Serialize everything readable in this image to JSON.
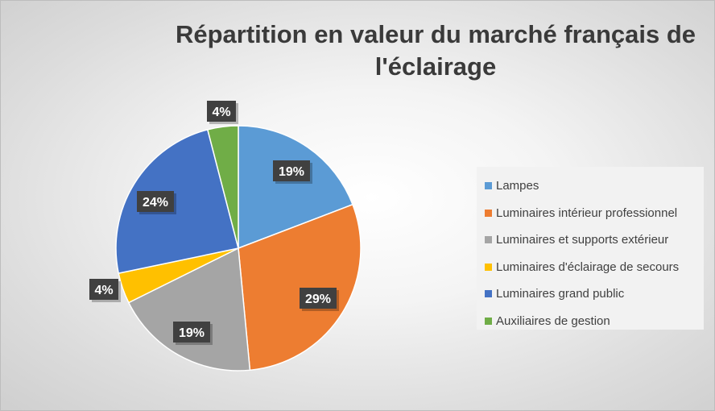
{
  "chart_data": {
    "type": "pie",
    "title": "Répartition en valeur du marché français de l'éclairage",
    "slices": [
      {
        "name": "Lampes",
        "value": 19,
        "label": "19%",
        "color": "#5B9BD5"
      },
      {
        "name": "Luminaires intérieur professionnel",
        "value": 29,
        "label": "29%",
        "color": "#ED7D31"
      },
      {
        "name": "Luminaires et supports extérieur",
        "value": 19,
        "label": "19%",
        "color": "#A5A5A5"
      },
      {
        "name": "Luminaires d'éclairage de secours",
        "value": 4,
        "label": "4%",
        "color": "#FFC000"
      },
      {
        "name": "Luminaires grand public",
        "value": 24,
        "label": "24%",
        "color": "#4472C4"
      },
      {
        "name": "Auxiliaires de gestion",
        "value": 4,
        "label": "4%",
        "color": "#70AD47"
      }
    ],
    "legend_position": "right"
  }
}
